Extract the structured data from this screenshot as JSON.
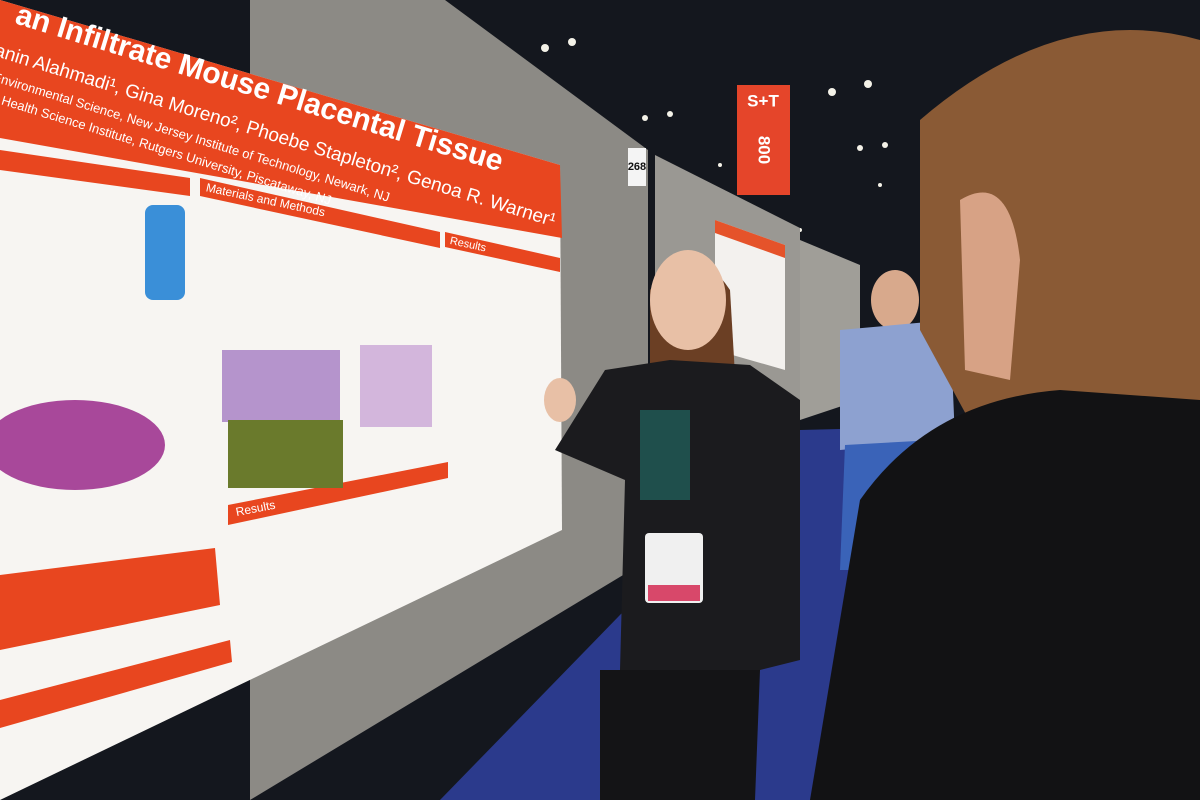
{
  "poster": {
    "title": "an Infiltrate Mouse Placental Tissue",
    "authors": "anin Alahmadi¹, Gina Moreno², Phoebe Stapleton², Genoa R. Warner¹",
    "affiliations": [
      "d Environmental Science, New Jersey Institute of Technology, Newark, NJ",
      "ional Health Science Institute, Rutgers University, Piscataway, NJ"
    ],
    "sections": [
      "Materials and Methods",
      "Results",
      "Results"
    ]
  },
  "booth_number": "268",
  "banner": {
    "line1": "S+T",
    "line2": "800"
  }
}
